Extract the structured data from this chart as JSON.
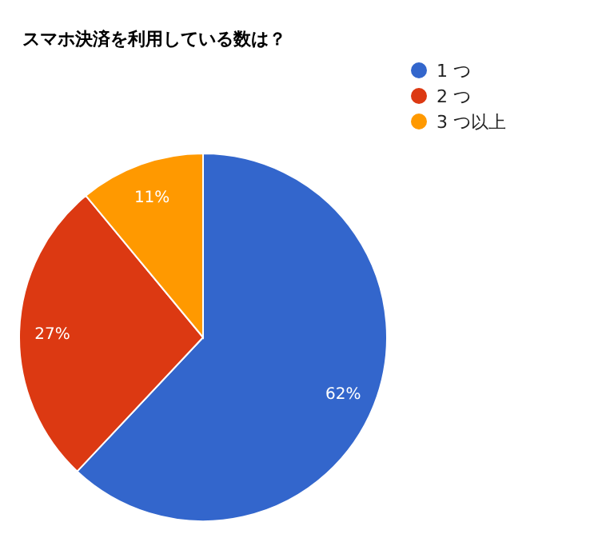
{
  "chart_data": {
    "type": "pie",
    "title": "スマホ決済を利用している数は？",
    "categories": [
      "1 つ",
      "2 つ",
      "3 つ以上"
    ],
    "values": [
      62,
      27,
      11
    ],
    "colors": [
      "#3366cc",
      "#dc3912",
      "#ff9900"
    ],
    "value_labels": [
      "62%",
      "27%",
      "11%"
    ],
    "legend": "top right"
  }
}
